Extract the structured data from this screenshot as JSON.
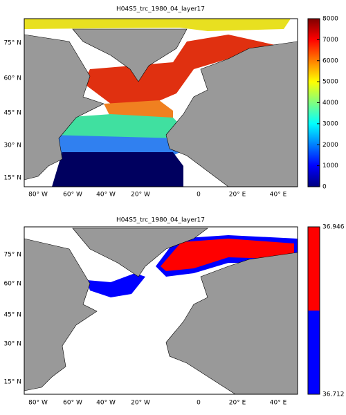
{
  "panels": [
    {
      "title": "H04S5_trc_1980_04_layer17",
      "lat_labels": [
        "75° N",
        "60° N",
        "45° N",
        "30° N",
        "15° N"
      ],
      "lon_labels": [
        "80° W",
        "60° W",
        "40° W",
        "20° W",
        "0",
        "20° E",
        "40° E"
      ],
      "colorbar": {
        "lim": [
          0,
          8000
        ],
        "ticks": [
          0,
          1000,
          2000,
          3000,
          4000,
          5000,
          6000,
          7000,
          8000
        ]
      }
    },
    {
      "title": "H04S5_trc_1980_04_layer17",
      "lat_labels": [
        "75° N",
        "60° N",
        "45° N",
        "30° N",
        "15° N"
      ],
      "lon_labels": [
        "80° W",
        "60° W",
        "40° W",
        "20° W",
        "0",
        "20° E",
        "40° E"
      ],
      "colorbar": {
        "lim": [
          36.712,
          36.946
        ],
        "ticks": [
          36.712,
          36.946
        ]
      }
    }
  ]
}
